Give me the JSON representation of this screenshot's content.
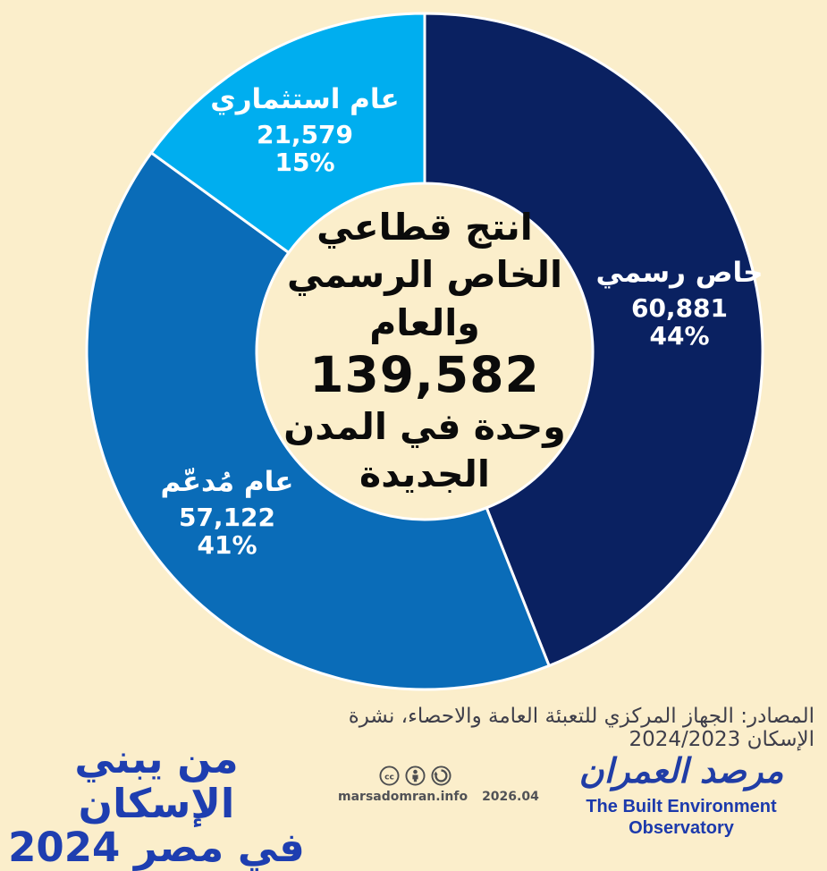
{
  "chart_data": {
    "type": "pie",
    "donut": true,
    "start_angle_deg": 0,
    "direction": "clockwise",
    "total_units": 139582,
    "series": [
      {
        "key": "formal-private",
        "name": "خاص رسمي",
        "value": "60,881",
        "value_num": 60881,
        "pct": "44%",
        "pct_num": 44,
        "color": "#0A2161"
      },
      {
        "key": "subsidized-public",
        "name": "عام مُدعّم",
        "value": "57,122",
        "value_num": 57122,
        "pct": "41%",
        "pct_num": 41,
        "color": "#0A6CB8"
      },
      {
        "key": "investment-public",
        "name": "عام استثماري",
        "value": "21,579",
        "value_num": 21579,
        "pct": "15%",
        "pct_num": 15,
        "color": "#00AEEF"
      }
    ],
    "center_label": {
      "line1": "انتج  قطاعي",
      "line2": "الخاص الرسمي",
      "line3": "والعام",
      "total": "139,582",
      "line4": "وحدة في المدن",
      "line5": "الجديدة"
    },
    "legend": "none",
    "separator_color": "#FFFFFF"
  },
  "footer": {
    "source": "المصادر:  الجهاز المركزي للتعبئة العامة والاحصاء، نشرة الإسكان 2024/2023",
    "poster_title_line1": "من يبني الإسكان",
    "poster_title_line2": "في مصر 2024",
    "license": {
      "icons": [
        "cc",
        "attribution-person",
        "share-alike-arrow"
      ],
      "site": "marsadomran.info",
      "edition": "2026.04"
    },
    "brand": {
      "arabic": "مرصد العمران",
      "english": "The Built Environment Observatory"
    }
  },
  "colors": {
    "background": "#FBEECB",
    "navy": "#0A2161",
    "medium_blue": "#0A6CB8",
    "light_blue": "#00AEEF",
    "title_blue": "#1E3EB0",
    "brand_blue": "#203DA6",
    "source_text": "#3E3E4A",
    "license_gray": "#4D4E50"
  }
}
